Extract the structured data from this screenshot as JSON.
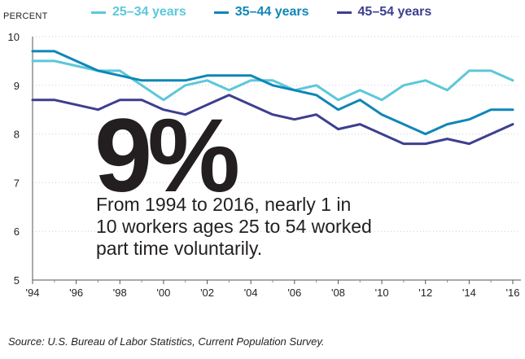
{
  "chart_data": {
    "type": "line",
    "ylabel": "PERCENT",
    "ylim": [
      5,
      10
    ],
    "yticks": [
      5,
      6,
      7,
      8,
      9,
      10
    ],
    "xlim": [
      1994,
      2016
    ],
    "xtick_values": [
      1994,
      1996,
      1998,
      2000,
      2002,
      2004,
      2006,
      2008,
      2010,
      2012,
      2014,
      2016
    ],
    "xtick_labels": [
      "'94",
      "'96",
      "'98",
      "'00",
      "'02",
      "'04",
      "'06",
      "'08",
      "'10",
      "'12",
      "'14",
      "'16"
    ],
    "grid": true,
    "legend_position": "top",
    "x": [
      1994,
      1995,
      1996,
      1997,
      1998,
      1999,
      2000,
      2001,
      2002,
      2003,
      2004,
      2005,
      2006,
      2007,
      2008,
      2009,
      2010,
      2011,
      2012,
      2013,
      2014,
      2015,
      2016
    ],
    "series": [
      {
        "name": "25–34 years",
        "color": "#5cc8da",
        "values": [
          9.5,
          9.5,
          9.4,
          9.3,
          9.3,
          9.0,
          8.7,
          9.0,
          9.1,
          8.9,
          9.1,
          9.1,
          8.9,
          9.0,
          8.7,
          8.9,
          8.7,
          9.0,
          9.1,
          8.9,
          9.3,
          9.3,
          9.1
        ]
      },
      {
        "name": "35–44 years",
        "color": "#0f86b7",
        "values": [
          9.7,
          9.7,
          9.5,
          9.3,
          9.2,
          9.1,
          9.1,
          9.1,
          9.2,
          9.2,
          9.2,
          9.0,
          8.9,
          8.8,
          8.5,
          8.7,
          8.4,
          8.2,
          8.0,
          8.2,
          8.3,
          8.5,
          8.5
        ]
      },
      {
        "name": "45–54 years",
        "color": "#3d3f8f",
        "values": [
          8.7,
          8.7,
          8.6,
          8.5,
          8.7,
          8.7,
          8.5,
          8.4,
          8.6,
          8.8,
          8.6,
          8.4,
          8.3,
          8.4,
          8.1,
          8.2,
          8.0,
          7.8,
          7.8,
          7.9,
          7.8,
          8.0,
          8.2
        ]
      }
    ],
    "annotation_big": "9%",
    "annotation_text": "From 1994 to 2016, nearly 1 in 10 workers ages 25 to 54 worked part time voluntarily.",
    "source": "Source: U.S. Bureau of Labor Statistics, Current Population Survey."
  }
}
